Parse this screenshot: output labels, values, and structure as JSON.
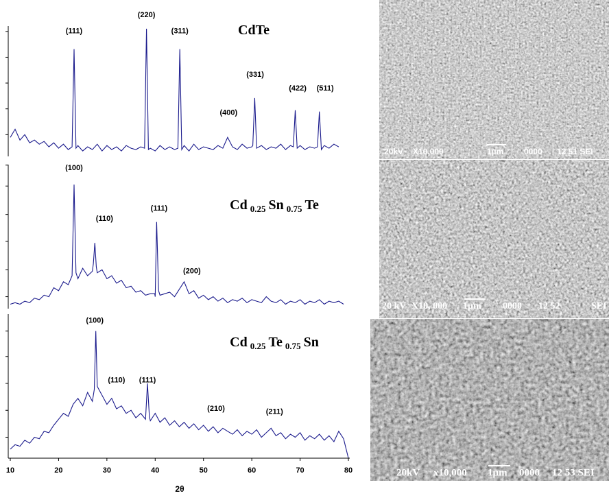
{
  "chart_data": [
    {
      "type": "line",
      "title": [
        "CdTe"
      ],
      "color": "#1a1a8c",
      "xlim": [
        10,
        80
      ],
      "ylim": [
        0,
        100
      ],
      "yticks": [
        16,
        35,
        54,
        73,
        92
      ],
      "x": [
        10,
        11,
        12,
        13,
        14,
        15,
        16,
        17,
        18,
        19,
        20,
        21,
        22,
        22.8,
        23.2,
        23.6,
        24,
        25,
        26,
        27,
        28,
        29,
        30,
        31,
        32,
        33,
        34,
        35,
        36,
        37,
        37.8,
        38.2,
        38.6,
        39,
        40,
        41,
        42,
        43,
        44,
        44.7,
        45.1,
        45.5,
        46,
        47,
        48,
        49,
        50,
        51,
        52,
        53,
        54,
        55,
        56,
        57,
        58,
        59,
        60,
        60.2,
        60.6,
        61,
        62,
        63,
        64,
        65,
        66,
        67,
        68,
        68.6,
        69,
        69.4,
        70,
        71,
        72,
        73,
        73.6,
        74,
        74.4,
        75,
        76,
        77,
        78
      ],
      "values": [
        14,
        20,
        12,
        16,
        10,
        12,
        9,
        11,
        7,
        10,
        6,
        9,
        5,
        7,
        79,
        6,
        8,
        4,
        7,
        5,
        9,
        4,
        8,
        5,
        7,
        4,
        8,
        6,
        5,
        7,
        6,
        94,
        5,
        6,
        4,
        8,
        5,
        7,
        5,
        6,
        79,
        5,
        8,
        4,
        9,
        5,
        7,
        6,
        5,
        8,
        6,
        14,
        7,
        5,
        9,
        6,
        7,
        8,
        43,
        6,
        8,
        5,
        7,
        6,
        9,
        5,
        8,
        7,
        34,
        6,
        8,
        5,
        7,
        6,
        7,
        33,
        5,
        8,
        6,
        9,
        7
      ],
      "annotations": [
        {
          "text": "(111)",
          "x": 23.2,
          "y": 92
        },
        {
          "text": "(220)",
          "x": 38.2,
          "y": 104
        },
        {
          "text": "(311)",
          "x": 45.1,
          "y": 92
        },
        {
          "text": "(400)",
          "x": 55.2,
          "y": 32
        },
        {
          "text": "(331)",
          "x": 60.7,
          "y": 60
        },
        {
          "text": "(422)",
          "x": 69.5,
          "y": 50
        },
        {
          "text": "(511)",
          "x": 75.2,
          "y": 50
        }
      ]
    },
    {
      "type": "line",
      "title": [
        "Cd",
        "0.25",
        "Sn",
        "0.75",
        "Te"
      ],
      "color": "#1a1a8c",
      "xlim": [
        10,
        80
      ],
      "ylim": [
        0,
        100
      ],
      "yticks": [
        8,
        26,
        45,
        63,
        82,
        96
      ],
      "x": [
        10,
        11,
        12,
        13,
        14,
        15,
        16,
        17,
        18,
        19,
        20,
        21,
        22,
        22.8,
        23.2,
        23.6,
        24,
        25,
        26,
        27,
        27.2,
        27.5,
        27.8,
        28,
        29,
        30,
        31,
        32,
        33,
        34,
        35,
        36,
        37,
        38,
        39,
        39.9,
        40,
        40.3,
        40.7,
        41,
        42,
        43,
        44,
        45,
        46,
        47,
        48,
        49,
        50,
        51,
        52,
        53,
        54,
        55,
        56,
        57,
        58,
        59,
        60,
        61,
        62,
        63,
        64,
        65,
        66,
        67,
        68,
        69,
        70,
        71,
        72,
        73,
        74,
        75,
        76,
        77,
        78,
        79
      ],
      "values": [
        3,
        4,
        3,
        5,
        4,
        7,
        6,
        9,
        8,
        14,
        12,
        18,
        16,
        22,
        83,
        24,
        20,
        27,
        22,
        25,
        30,
        44,
        28,
        24,
        26,
        20,
        22,
        17,
        19,
        14,
        15,
        11,
        12,
        9,
        10,
        10,
        8,
        58,
        12,
        9,
        10,
        11,
        8,
        13,
        18,
        10,
        12,
        7,
        9,
        6,
        8,
        5,
        7,
        4,
        6,
        5,
        7,
        4,
        6,
        5,
        4,
        8,
        5,
        4,
        6,
        3,
        5,
        4,
        6,
        3,
        5,
        4,
        6,
        3,
        5,
        4,
        5,
        3
      ],
      "annotations": [
        {
          "text": "(100)",
          "x": 23.2,
          "y": 94
        },
        {
          "text": "(110)",
          "x": 29.5,
          "y": 60
        },
        {
          "text": "(111)",
          "x": 40.8,
          "y": 67
        },
        {
          "text": "(200)",
          "x": 47.6,
          "y": 25
        }
      ]
    },
    {
      "type": "line",
      "title": [
        "Cd",
        "0.25",
        "Te",
        "0.75",
        "Sn"
      ],
      "color": "#1a1a8c",
      "xlim": [
        10,
        80
      ],
      "ylim": [
        0,
        100
      ],
      "yticks": [
        14,
        32,
        50,
        68,
        85
      ],
      "xticks": [
        10,
        20,
        30,
        40,
        50,
        60,
        70,
        80
      ],
      "xlabel": "2θ",
      "x": [
        10,
        11,
        12,
        13,
        14,
        15,
        16,
        17,
        18,
        19,
        20,
        21,
        22,
        23,
        24,
        25,
        26,
        27,
        27.4,
        27.7,
        28,
        29,
        30,
        31,
        32,
        33,
        34,
        35,
        36,
        37,
        38,
        38.4,
        38.8,
        39,
        40,
        41,
        42,
        43,
        44,
        45,
        46,
        47,
        48,
        49,
        50,
        51,
        52,
        53,
        54,
        55,
        56,
        57,
        58,
        59,
        60,
        61,
        62,
        63,
        64,
        65,
        66,
        67,
        68,
        69,
        70,
        71,
        72,
        73,
        74,
        75,
        76,
        77,
        78,
        79,
        80
      ],
      "values": [
        6,
        9,
        8,
        12,
        10,
        14,
        13,
        18,
        17,
        22,
        26,
        30,
        28,
        36,
        40,
        35,
        44,
        38,
        46,
        85,
        48,
        42,
        36,
        40,
        33,
        35,
        30,
        32,
        27,
        30,
        26,
        50,
        28,
        25,
        30,
        24,
        27,
        22,
        25,
        21,
        24,
        20,
        23,
        19,
        22,
        18,
        21,
        17,
        20,
        18,
        16,
        19,
        15,
        18,
        16,
        19,
        14,
        17,
        20,
        15,
        17,
        13,
        16,
        14,
        17,
        12,
        15,
        13,
        16,
        12,
        15,
        11,
        18,
        13,
        0
      ],
      "annotations": [
        {
          "text": "(100)",
          "x": 27.5,
          "y": 92
        },
        {
          "text": "(110)",
          "x": 32.0,
          "y": 52
        },
        {
          "text": "(111)",
          "x": 38.4,
          "y": 52
        },
        {
          "text": "(210)",
          "x": 52.6,
          "y": 33
        },
        {
          "text": "(211)",
          "x": 64.7,
          "y": 31
        }
      ]
    }
  ],
  "images": [
    {
      "caption": [
        "20kV",
        "X10,000",
        "1µm",
        "0000",
        "12 51 SEI"
      ]
    },
    {
      "caption": [
        "20 kV",
        "X10, 000",
        "1µm",
        "0000",
        "12 52",
        "SEI"
      ]
    },
    {
      "caption": [
        "20kV",
        "x10,000",
        "1µm",
        "0000",
        "12 53 SEI"
      ]
    }
  ]
}
